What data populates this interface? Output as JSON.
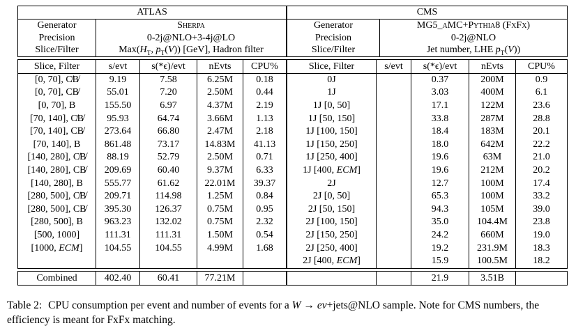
{
  "columns": [
    "Slice, Filter",
    "s/evt",
    "s(*ϵ)/evt",
    "nEvts",
    "CPU%"
  ],
  "atlas": {
    "title": "ATLAS",
    "generator_label": "Generator",
    "generator_value": "Sherpa",
    "precision_label": "Precision",
    "precision_value": "0-2j@NLO+3-4j@LO",
    "slice_label": "Slice/Filter",
    "slice_value": {
      "pre": "Max(",
      "h": "H",
      "h_sub": "T",
      "mid": ", ",
      "p": "p",
      "p_sub": "T",
      "open": "(",
      "v": "V",
      "post": ")) [GeV], Hadron filter"
    },
    "rows": [
      [
        "[0, 70], C̸B̸",
        "9.19",
        "7.58",
        "6.25M",
        "0.18"
      ],
      [
        "[0, 70], CB̸",
        "55.01",
        "7.20",
        "2.50M",
        "0.44"
      ],
      [
        "[0, 70], B",
        "155.50",
        "6.97",
        "4.37M",
        "2.19"
      ],
      [
        "[70, 140], C̸B̸",
        "95.93",
        "64.74",
        "3.66M",
        "1.13"
      ],
      [
        "[70, 140], CB̸",
        "273.64",
        "66.80",
        "2.47M",
        "2.18"
      ],
      [
        "[70, 140], B",
        "861.48",
        "73.17",
        "14.83M",
        "41.13"
      ],
      [
        "[140, 280], C̸B̸",
        "88.19",
        "52.79",
        "2.50M",
        "0.71"
      ],
      [
        "[140, 280], CB̸",
        "209.69",
        "60.40",
        "9.37M",
        "6.33"
      ],
      [
        "[140, 280], B",
        "555.77",
        "61.62",
        "22.01M",
        "39.37"
      ],
      [
        "[280, 500], C̸B̸",
        "209.71",
        "114.98",
        "1.25M",
        "0.84"
      ],
      [
        "[280, 500], CB̸",
        "395.30",
        "126.37",
        "0.75M",
        "0.95"
      ],
      [
        "[280, 500], B",
        "963.23",
        "132.02",
        "0.75M",
        "2.32"
      ],
      [
        "[500, 1000]",
        "111.31",
        "111.31",
        "1.50M",
        "0.54"
      ],
      [
        "[1000, ECM]",
        "104.55",
        "104.55",
        "4.99M",
        "1.68"
      ],
      [
        "",
        "",
        "",
        "",
        ""
      ]
    ],
    "combined": [
      "Combined",
      "402.40",
      "60.41",
      "77.21M",
      ""
    ]
  },
  "cms": {
    "title": "CMS",
    "generator_label": "Generator",
    "generator_value": "MG5_aMC+Pythia8 (FxFx)",
    "precision_label": "Precision",
    "precision_value": "0-2j@NLO",
    "slice_label": "Slice/Filter",
    "slice_value": {
      "pre": "Jet number, LHE ",
      "p": "p",
      "p_sub": "T",
      "open": "(",
      "v": "V",
      "post": "))"
    },
    "rows": [
      [
        "0J",
        "",
        "0.37",
        "200M",
        "0.9"
      ],
      [
        "1J",
        "",
        "3.03",
        "400M",
        "6.1"
      ],
      [
        "1J [0, 50]",
        "",
        "17.1",
        "122M",
        "23.6"
      ],
      [
        "1J [50, 150]",
        "",
        "33.8",
        "287M",
        "28.8"
      ],
      [
        "1J [100, 150]",
        "",
        "18.4",
        "183M",
        "20.1"
      ],
      [
        "1J [150, 250]",
        "",
        "18.0",
        "642M",
        "22.2"
      ],
      [
        "1J [250, 400]",
        "",
        "19.6",
        "63M",
        "21.0"
      ],
      [
        "1J [400, ECM]",
        "",
        "19.6",
        "212M",
        "20.2"
      ],
      [
        "2J",
        "",
        "12.7",
        "100M",
        "17.4"
      ],
      [
        "2J [0, 50]",
        "",
        "65.3",
        "100M",
        "33.2"
      ],
      [
        "2J [50, 150]",
        "",
        "94.3",
        "105M",
        "39.0"
      ],
      [
        "2J [100, 150]",
        "",
        "35.0",
        "104.4M",
        "23.8"
      ],
      [
        "2J [150, 250]",
        "",
        "24.2",
        "660M",
        "19.0"
      ],
      [
        "2J [250, 400]",
        "",
        "19.2",
        "231.9M",
        "18.3"
      ],
      [
        "2J [400, ECM]",
        "",
        "15.9",
        "100.5M",
        "18.2"
      ]
    ],
    "combined": [
      "",
      "",
      "21.9",
      "3.51B",
      ""
    ]
  },
  "caption": {
    "tag": "Table 2:",
    "pre": "CPU consumption per event and number of events for a ",
    "math": "W → eν",
    "post": "+jets@NLO sample. Note for CMS numbers, the efficiency is meant for FxFx matching."
  }
}
